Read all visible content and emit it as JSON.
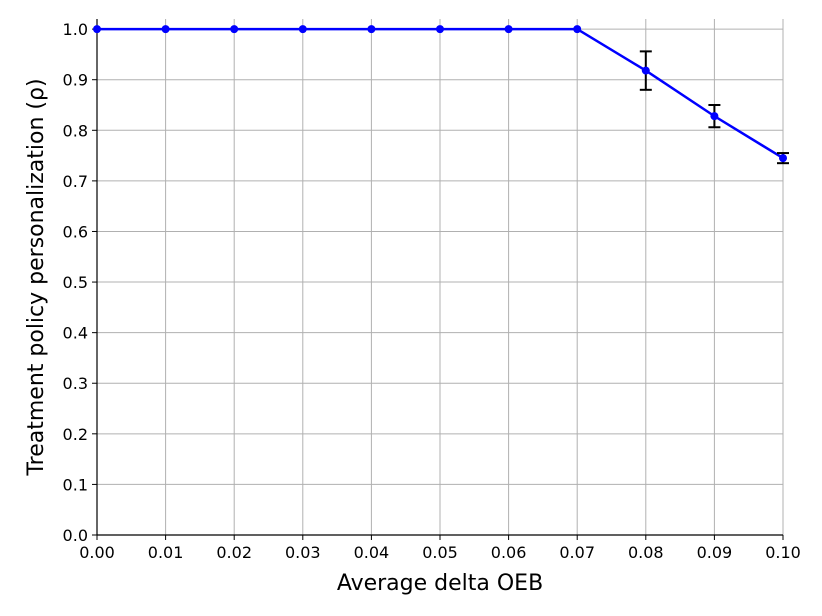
{
  "chart_data": {
    "type": "line",
    "x_label": "Average delta OEB",
    "y_label": "Treatment policy personalization (ρ)",
    "x": [
      0,
      0.01,
      0.02,
      0.03,
      0.04,
      0.05,
      0.06,
      0.07,
      0.08,
      0.09,
      0.1
    ],
    "series": [
      {
        "color": "#0000ff",
        "error_color": "#000000",
        "values": [
          1,
          1,
          1,
          1,
          1,
          1,
          1,
          1,
          0.918,
          0.828,
          0.745
        ],
        "errors": [
          0,
          0,
          0,
          0,
          0,
          0,
          0,
          0,
          0.038,
          0.022,
          0.01
        ]
      }
    ],
    "xlim": [
      0,
      0.1
    ],
    "xticks": [
      {
        "value": 0,
        "label": "0.00"
      },
      0.01,
      0.02,
      0.03,
      0.04,
      0.05,
      0.06,
      0.07,
      0.08,
      0.09,
      {
        "value": 0.1,
        "label": "0.10"
      }
    ],
    "ylim": [
      0,
      1.02
    ],
    "yticks": [
      {
        "value": 0,
        "label": "0.0"
      },
      0.1,
      0.2,
      0.3,
      0.4,
      0.5,
      0.6,
      0.7,
      0.8,
      0.9,
      {
        "value": 1,
        "label": "1.0"
      }
    ],
    "grid": true
  }
}
